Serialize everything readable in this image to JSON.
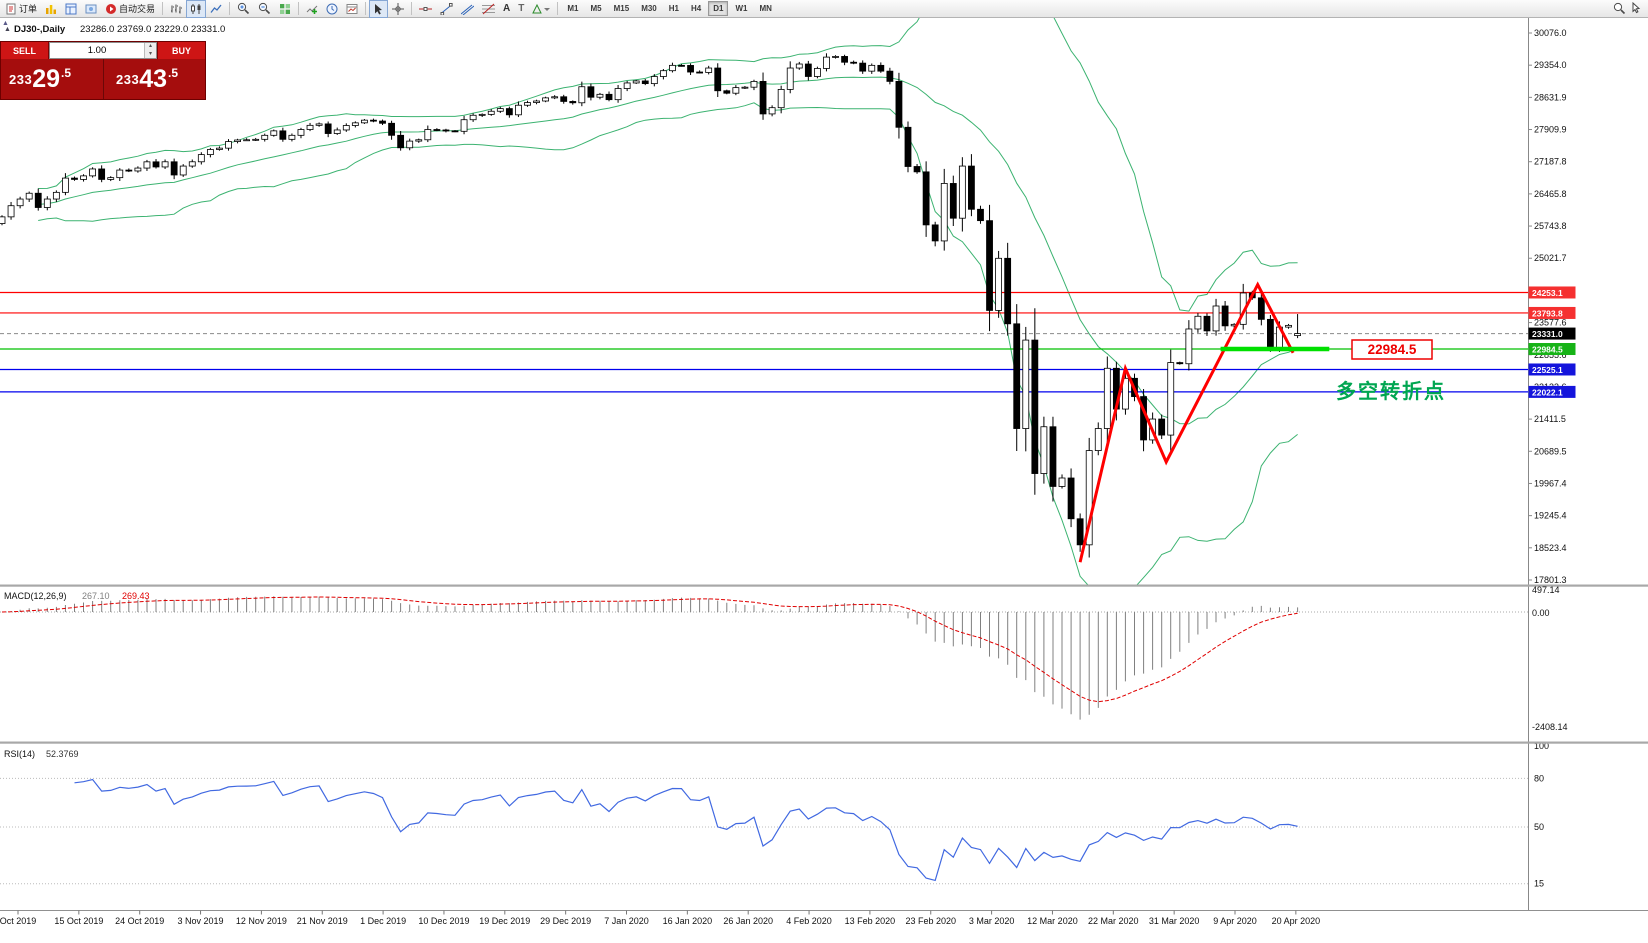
{
  "toolbar": {
    "order_label": "订单",
    "autotrade_label": "自动交易",
    "timeframes": [
      "M1",
      "M5",
      "M15",
      "M30",
      "H1",
      "H4",
      "D1",
      "W1",
      "MN"
    ],
    "active_timeframe": "D1"
  },
  "chart": {
    "title": "DJ30-,Daily",
    "ohlc_display": "23286.0 23769.0 23229.0 23331.0"
  },
  "trade": {
    "sell_label": "SELL",
    "buy_label": "BUY",
    "volume": "1.00",
    "sell_price": "23329.5",
    "buy_price": "23343.5"
  },
  "chart_data": {
    "type": "candlestick",
    "symbol": "DJ30-",
    "timeframe": "Daily",
    "last_candle": {
      "open": 23286.0,
      "high": 23769.0,
      "low": 23229.0,
      "close": 23331.0
    },
    "closes": [
      25950,
      26200,
      26350,
      26480,
      26160,
      26350,
      26500,
      26820,
      26790,
      26870,
      27025,
      26790,
      26830,
      27000,
      26980,
      27045,
      27185,
      27070,
      27186,
      26890,
      27090,
      27186,
      27347,
      27462,
      27492,
      27640,
      27675,
      27680,
      27690,
      27780,
      27880,
      27690,
      27780,
      27910,
      28004,
      28036,
      27820,
      27900,
      28000,
      28060,
      28120,
      28100,
      28050,
      27780,
      27500,
      27650,
      27680,
      27910,
      27900,
      27880,
      27870,
      28130,
      28230,
      28250,
      28320,
      28380,
      28240,
      28455,
      28515,
      28550,
      28620,
      28645,
      28540,
      28510,
      28870,
      28635,
      28700,
      28580,
      28830,
      28955,
      29000,
      28940,
      29100,
      29230,
      29350,
      29348,
      29200,
      29190,
      29290,
      28780,
      28725,
      28850,
      28860,
      28990,
      28260,
      28400,
      28810,
      29290,
      29380,
      29100,
      29280,
      29535,
      29550,
      29420,
      29400,
      29220,
      29350,
      29220,
      28990,
      27960,
      27080,
      26960,
      25770,
      25410,
      26700,
      25920,
      27090,
      26120,
      25865,
      23850,
      25020,
      23550,
      21200,
      23185,
      20190,
      21240,
      19900,
      20090,
      19175,
      18590,
      20705,
      21200,
      22552,
      21637,
      22327,
      21917,
      20944,
      21413,
      21053,
      22680,
      22654,
      23434,
      23719,
      23391,
      23950,
      23504,
      23538,
      24242,
      24133,
      23650,
      23018,
      23476,
      23515,
      23331
    ],
    "x_labels": [
      "Oct 2019",
      "15 Oct 2019",
      "24 Oct 2019",
      "3 Nov 2019",
      "12 Nov 2019",
      "21 Nov 2019",
      "1 Dec 2019",
      "10 Dec 2019",
      "19 Dec 2019",
      "29 Dec 2019",
      "7 Jan 2020",
      "16 Jan 2020",
      "26 Jan 2020",
      "4 Feb 2020",
      "13 Feb 2020",
      "23 Feb 2020",
      "3 Mar 2020",
      "12 Mar 2020",
      "22 Mar 2020",
      "31 Mar 2020",
      "9 Apr 2020",
      "20 Apr 2020"
    ],
    "y_ticks": [
      "30076.0",
      "29354.0",
      "28631.9",
      "27909.9",
      "27187.8",
      "26465.8",
      "25743.8",
      "25021.7",
      "24299.7",
      "23577.6",
      "22855.6",
      "22133.6",
      "21411.5",
      "20689.5",
      "19967.4",
      "19245.4",
      "18523.4",
      "17801.3"
    ],
    "h_lines": [
      {
        "price": 24253.1,
        "color": "#FF0000",
        "bg": "#F53030",
        "style": "solid"
      },
      {
        "price": 23793.8,
        "color": "#FF0000",
        "bg": "#F53030",
        "style": "solid"
      },
      {
        "price": 23331.0,
        "color": "#8a8a8a",
        "bg": "#000000",
        "style": "dashed"
      },
      {
        "price": 22984.5,
        "color": "#00C000",
        "bg": "#17B317",
        "style": "solid"
      },
      {
        "price": 22525.1,
        "color": "#0000EE",
        "bg": "#1414DC",
        "style": "solid"
      },
      {
        "price": 22022.1,
        "color": "#0000EE",
        "bg": "#1414DC",
        "style": "solid"
      }
    ],
    "indicators": {
      "bollinger": {
        "period": 20,
        "deviations": 2,
        "color": "#3CB371"
      },
      "macd": {
        "label": "MACD(12,26,9)",
        "main": "267.10",
        "signal": "269.43",
        "axis_max": "497.14",
        "axis_zero": "0.00",
        "axis_min": "-2408.14",
        "histogram_color": "#808080",
        "signal_color": "#E00000"
      },
      "rsi": {
        "label": "RSI(14)",
        "value": "52.3769",
        "levels": [
          100,
          80,
          50,
          15
        ],
        "color": "#4169E1"
      }
    },
    "annotations": {
      "zigzag": {
        "color": "#FF0000",
        "points": [
          {
            "i": 119,
            "p": 18200
          },
          {
            "i": 124,
            "p": 22550
          },
          {
            "i": 128.5,
            "p": 20450
          },
          {
            "i": 138.6,
            "p": 24430
          },
          {
            "i": 142.5,
            "p": 22900
          }
        ]
      },
      "support_line": {
        "color": "#00E000",
        "price": 22984.5,
        "from_i": 134.5,
        "to_i": 146.5
      },
      "callout": "22984.5",
      "callout_color": "#EE0000",
      "note": "多空转折点",
      "note_color": "#00A651"
    }
  }
}
